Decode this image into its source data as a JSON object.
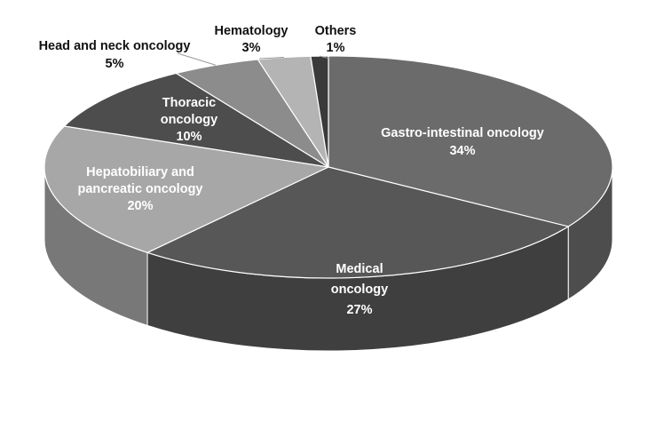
{
  "chart_data": {
    "type": "pie",
    "style": "3d",
    "title": "",
    "slices": [
      {
        "label": "Gastro-intestinal oncology",
        "value": 34,
        "value_label": "34%",
        "color": "#6b6b6b"
      },
      {
        "label": "Medical oncology",
        "value": 27,
        "value_label": "27%",
        "color": "#575757"
      },
      {
        "label": "Hepatobiliary and pancreatic oncology",
        "value": 20,
        "value_label": "20%",
        "color": "#a7a7a7"
      },
      {
        "label": "Thoracic oncology",
        "value": 10,
        "value_label": "10%",
        "color": "#4d4d4d"
      },
      {
        "label": "Head and neck oncology",
        "value": 5,
        "value_label": "5%",
        "color": "#8c8c8c"
      },
      {
        "label": "Hematology",
        "value": 3,
        "value_label": "3%",
        "color": "#b4b4b4"
      },
      {
        "label": "Others",
        "value": 1,
        "value_label": "1%",
        "color": "#3a3a3a"
      }
    ]
  }
}
